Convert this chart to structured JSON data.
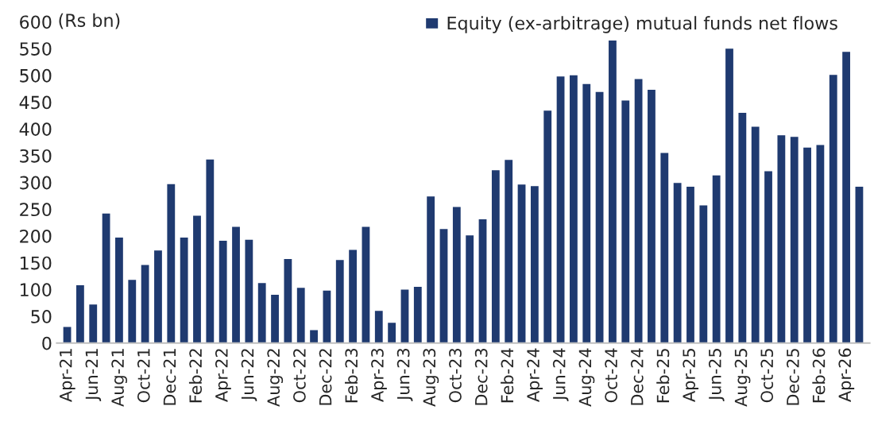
{
  "chart_data": {
    "type": "bar",
    "ylabel": "(Rs bn)",
    "categories": [
      "Apr-21",
      null,
      "Jun-21",
      null,
      "Aug-21",
      null,
      "Oct-21",
      null,
      "Dec-21",
      null,
      "Feb-22",
      null,
      "Apr-22",
      null,
      "Jun-22",
      null,
      "Aug-22",
      null,
      "Oct-22",
      null,
      "Dec-22",
      null,
      "Feb-23",
      null,
      "Apr-23",
      null,
      "Jun-23",
      null,
      "Aug-23",
      null,
      "Oct-23",
      null,
      "Dec-23",
      null,
      "Feb-24",
      null,
      "Apr-24",
      null,
      "Jun-24",
      null,
      "Aug-24",
      null,
      "Oct-24",
      null,
      "Dec-24",
      null,
      "Feb-25",
      null,
      "Apr-25",
      null,
      "Jun-25",
      null,
      "Aug-25",
      null,
      "Oct-25",
      null,
      "Dec-25",
      null,
      "Feb-26",
      null,
      "Apr-26",
      null
    ],
    "series": [
      {
        "name": "Equity (ex-arbitrage) mutual funds net flows",
        "color": "#1f3a70",
        "values": [
          30,
          108,
          72,
          242,
          197,
          118,
          146,
          173,
          297,
          197,
          238,
          343,
          191,
          217,
          193,
          112,
          90,
          157,
          103,
          24,
          98,
          155,
          174,
          217,
          60,
          38,
          100,
          105,
          274,
          213,
          254,
          201,
          231,
          323,
          342,
          296,
          293,
          434,
          498,
          500,
          484,
          469,
          565,
          453,
          493,
          473,
          355,
          299,
          292,
          257,
          313,
          550,
          430,
          404,
          321,
          388,
          385,
          365,
          370,
          501,
          544,
          292
        ]
      }
    ],
    "ylim": [
      0,
      600
    ],
    "yticks": [
      0,
      50,
      100,
      150,
      200,
      250,
      300,
      350,
      400,
      450,
      500,
      550,
      600
    ],
    "legend": "top right",
    "grid": false
  }
}
